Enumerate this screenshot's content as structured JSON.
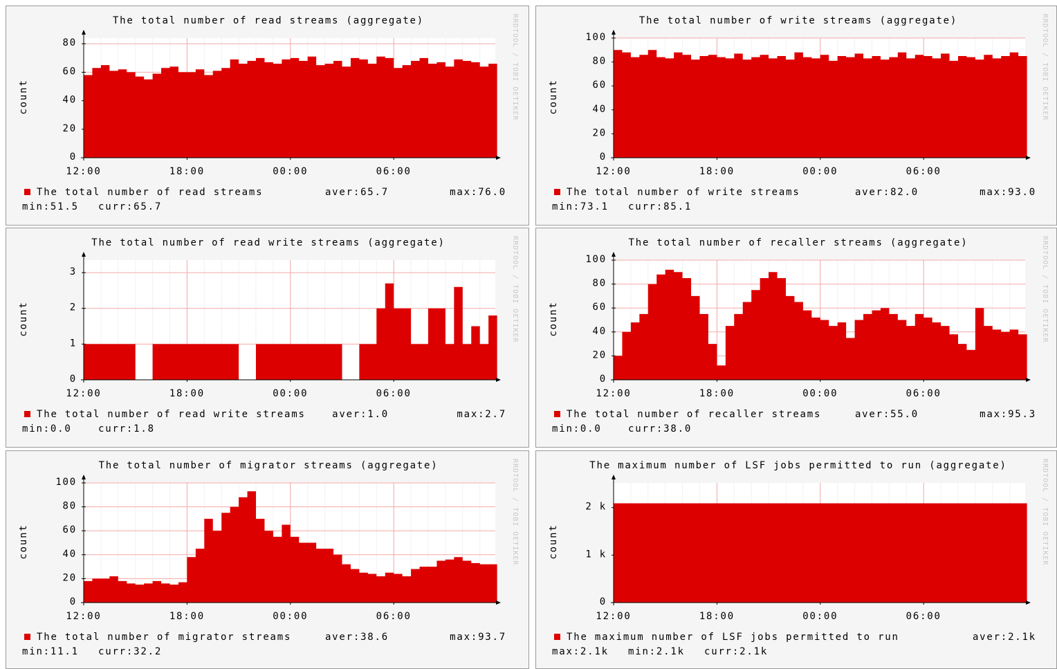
{
  "watermark": "RRDTOOL / TOBI OETIKER",
  "chart_data": [
    {
      "type": "area",
      "title": "The total number of read streams (aggregate)",
      "ylabel": "count",
      "x": [
        0,
        0.5,
        1,
        1.5,
        2,
        2.5,
        3,
        3.5,
        4,
        4.5,
        5,
        5.5,
        6,
        6.5,
        7,
        7.5,
        8,
        8.5,
        9,
        9.5,
        10,
        10.5,
        11,
        11.5,
        12,
        12.5,
        13,
        13.5,
        14,
        14.5,
        15,
        15.5,
        16,
        16.5,
        17,
        17.5,
        18,
        18.5,
        19,
        19.5,
        20,
        20.5,
        21,
        21.5,
        22,
        22.5,
        23,
        23.5
      ],
      "xlim": [
        0,
        24
      ],
      "xticks": [
        {
          "value": 0,
          "label": "12:00"
        },
        {
          "value": 6,
          "label": "18:00"
        },
        {
          "value": 12,
          "label": "00:00"
        },
        {
          "value": 18,
          "label": "06:00"
        }
      ],
      "ylim": [
        0,
        84
      ],
      "yticks": [
        0,
        20,
        40,
        60,
        80
      ],
      "grid": true,
      "series": [
        {
          "name": "The total number of read streams",
          "color": "#dd0000",
          "values": [
            58,
            63,
            65,
            61,
            62,
            60,
            57,
            55,
            59,
            63,
            64,
            60,
            60,
            62,
            58,
            61,
            63,
            69,
            66,
            68,
            70,
            67,
            66,
            69,
            70,
            68,
            71,
            65,
            66,
            68,
            64,
            70,
            69,
            66,
            71,
            70,
            63,
            65,
            68,
            70,
            66,
            67,
            64,
            69,
            68,
            67,
            64,
            66
          ]
        }
      ],
      "stats": [
        [
          "aver:65.7",
          "max:76.0"
        ],
        [
          "min:51.5",
          "curr:65.7"
        ]
      ]
    },
    {
      "type": "area",
      "title": "The total number of write streams (aggregate)",
      "ylabel": "count",
      "x": [
        0,
        0.5,
        1,
        1.5,
        2,
        2.5,
        3,
        3.5,
        4,
        4.5,
        5,
        5.5,
        6,
        6.5,
        7,
        7.5,
        8,
        8.5,
        9,
        9.5,
        10,
        10.5,
        11,
        11.5,
        12,
        12.5,
        13,
        13.5,
        14,
        14.5,
        15,
        15.5,
        16,
        16.5,
        17,
        17.5,
        18,
        18.5,
        19,
        19.5,
        20,
        20.5,
        21,
        21.5,
        22,
        22.5,
        23,
        23.5
      ],
      "xlim": [
        0,
        24
      ],
      "xticks": [
        {
          "value": 0,
          "label": "12:00"
        },
        {
          "value": 6,
          "label": "18:00"
        },
        {
          "value": 12,
          "label": "00:00"
        },
        {
          "value": 18,
          "label": "06:00"
        }
      ],
      "ylim": [
        0,
        100
      ],
      "yticks": [
        0,
        20,
        40,
        60,
        80,
        100
      ],
      "grid": true,
      "series": [
        {
          "name": "The total number of write streams",
          "color": "#dd0000",
          "values": [
            90,
            88,
            84,
            86,
            90,
            84,
            83,
            88,
            86,
            82,
            85,
            86,
            84,
            83,
            87,
            82,
            84,
            86,
            83,
            85,
            82,
            88,
            84,
            83,
            86,
            81,
            85,
            84,
            87,
            83,
            85,
            82,
            84,
            88,
            83,
            86,
            85,
            83,
            87,
            81,
            85,
            84,
            82,
            86,
            83,
            85,
            88,
            85
          ]
        }
      ],
      "stats": [
        [
          "aver:82.0",
          "max:93.0"
        ],
        [
          "min:73.1",
          "curr:85.1"
        ]
      ]
    },
    {
      "type": "area",
      "title": "The total number of read write streams (aggregate)",
      "ylabel": "count",
      "x": [
        0,
        0.5,
        1,
        1.5,
        2,
        2.5,
        3,
        3.5,
        4,
        4.5,
        5,
        5.5,
        6,
        6.5,
        7,
        7.5,
        8,
        8.5,
        9,
        9.5,
        10,
        10.5,
        11,
        11.5,
        12,
        12.5,
        13,
        13.5,
        14,
        14.5,
        15,
        15.5,
        16,
        16.5,
        17,
        17.5,
        18,
        18.5,
        19,
        19.5,
        20,
        20.5,
        21,
        21.5,
        22,
        22.5,
        23,
        23.5
      ],
      "xlim": [
        0,
        24
      ],
      "xticks": [
        {
          "value": 0,
          "label": "12:00"
        },
        {
          "value": 6,
          "label": "18:00"
        },
        {
          "value": 12,
          "label": "00:00"
        },
        {
          "value": 18,
          "label": "06:00"
        }
      ],
      "ylim": [
        0,
        3.35
      ],
      "yticks": [
        0,
        1,
        2,
        3
      ],
      "grid": true,
      "series": [
        {
          "name": "The total number of read write streams",
          "color": "#dd0000",
          "values": [
            1,
            1,
            1,
            1,
            1,
            1,
            0,
            0,
            1,
            1,
            1,
            1,
            1,
            1,
            1,
            1,
            1,
            1,
            0,
            0,
            1,
            1,
            1,
            1,
            1,
            1,
            1,
            1,
            1,
            1,
            0,
            0,
            1,
            1,
            2,
            2.7,
            2,
            2,
            1,
            1,
            2,
            2,
            1,
            2.6,
            1,
            1.5,
            1,
            1.8
          ]
        }
      ],
      "stats": [
        [
          "aver:1.0",
          "max:2.7"
        ],
        [
          "min:0.0",
          "curr:1.8"
        ]
      ]
    },
    {
      "type": "area",
      "title": "The total number of recaller streams (aggregate)",
      "ylabel": "count",
      "x": [
        0,
        0.5,
        1,
        1.5,
        2,
        2.5,
        3,
        3.5,
        4,
        4.5,
        5,
        5.5,
        6,
        6.5,
        7,
        7.5,
        8,
        8.5,
        9,
        9.5,
        10,
        10.5,
        11,
        11.5,
        12,
        12.5,
        13,
        13.5,
        14,
        14.5,
        15,
        15.5,
        16,
        16.5,
        17,
        17.5,
        18,
        18.5,
        19,
        19.5,
        20,
        20.5,
        21,
        21.5,
        22,
        22.5,
        23,
        23.5
      ],
      "xlim": [
        0,
        24
      ],
      "xticks": [
        {
          "value": 0,
          "label": "12:00"
        },
        {
          "value": 6,
          "label": "18:00"
        },
        {
          "value": 12,
          "label": "00:00"
        },
        {
          "value": 18,
          "label": "06:00"
        }
      ],
      "ylim": [
        0,
        100
      ],
      "yticks": [
        0,
        20,
        40,
        60,
        80,
        100
      ],
      "grid": true,
      "series": [
        {
          "name": "The total number of recaller streams",
          "color": "#dd0000",
          "values": [
            20,
            40,
            48,
            55,
            80,
            88,
            92,
            90,
            85,
            70,
            55,
            30,
            12,
            45,
            55,
            65,
            75,
            85,
            90,
            85,
            70,
            65,
            58,
            52,
            50,
            45,
            48,
            35,
            50,
            55,
            58,
            60,
            55,
            50,
            45,
            55,
            52,
            48,
            45,
            38,
            30,
            25,
            60,
            45,
            42,
            40,
            42,
            38
          ]
        }
      ],
      "stats": [
        [
          "aver:55.0",
          "max:95.3"
        ],
        [
          "min:0.0",
          "curr:38.0"
        ]
      ]
    },
    {
      "type": "area",
      "title": "The total number of migrator streams (aggregate)",
      "ylabel": "count",
      "x": [
        0,
        0.5,
        1,
        1.5,
        2,
        2.5,
        3,
        3.5,
        4,
        4.5,
        5,
        5.5,
        6,
        6.5,
        7,
        7.5,
        8,
        8.5,
        9,
        9.5,
        10,
        10.5,
        11,
        11.5,
        12,
        12.5,
        13,
        13.5,
        14,
        14.5,
        15,
        15.5,
        16,
        16.5,
        17,
        17.5,
        18,
        18.5,
        19,
        19.5,
        20,
        20.5,
        21,
        21.5,
        22,
        22.5,
        23,
        23.5
      ],
      "xlim": [
        0,
        24
      ],
      "xticks": [
        {
          "value": 0,
          "label": "12:00"
        },
        {
          "value": 6,
          "label": "18:00"
        },
        {
          "value": 12,
          "label": "00:00"
        },
        {
          "value": 18,
          "label": "06:00"
        }
      ],
      "ylim": [
        0,
        100
      ],
      "yticks": [
        0,
        20,
        40,
        60,
        80,
        100
      ],
      "grid": true,
      "series": [
        {
          "name": "The total number of migrator streams",
          "color": "#dd0000",
          "values": [
            18,
            20,
            20,
            22,
            18,
            16,
            15,
            16,
            18,
            16,
            15,
            17,
            38,
            45,
            70,
            60,
            75,
            80,
            88,
            93,
            70,
            60,
            55,
            65,
            55,
            50,
            50,
            45,
            45,
            40,
            32,
            28,
            25,
            24,
            22,
            25,
            24,
            22,
            28,
            30,
            30,
            35,
            36,
            38,
            35,
            33,
            32,
            32
          ]
        }
      ],
      "stats": [
        [
          "aver:38.6",
          "max:93.7"
        ],
        [
          "min:11.1",
          "curr:32.2"
        ]
      ]
    },
    {
      "type": "area",
      "title": "The maximum number of LSF jobs permitted to run (aggregate)",
      "ylabel": "count",
      "x": [
        0,
        0.5,
        1,
        1.5,
        2,
        2.5,
        3,
        3.5,
        4,
        4.5,
        5,
        5.5,
        6,
        6.5,
        7,
        7.5,
        8,
        8.5,
        9,
        9.5,
        10,
        10.5,
        11,
        11.5,
        12,
        12.5,
        13,
        13.5,
        14,
        14.5,
        15,
        15.5,
        16,
        16.5,
        17,
        17.5,
        18,
        18.5,
        19,
        19.5,
        20,
        20.5,
        21,
        21.5,
        22,
        22.5,
        23,
        23.5
      ],
      "xlim": [
        0,
        24
      ],
      "xticks": [
        {
          "value": 0,
          "label": "12:00"
        },
        {
          "value": 6,
          "label": "18:00"
        },
        {
          "value": 12,
          "label": "00:00"
        },
        {
          "value": 18,
          "label": "06:00"
        }
      ],
      "ylim": [
        0,
        2520
      ],
      "yticks": [
        0,
        {
          "value": 1000,
          "label": "1 k"
        },
        {
          "value": 2000,
          "label": "2 k"
        }
      ],
      "grid": true,
      "series": [
        {
          "name": "The maximum number of LSF jobs permitted to run",
          "color": "#dd0000",
          "values": [
            2090,
            2090,
            2090,
            2090,
            2090,
            2090,
            2090,
            2090,
            2090,
            2090,
            2090,
            2090,
            2090,
            2090,
            2090,
            2090,
            2090,
            2090,
            2090,
            2090,
            2090,
            2090,
            2090,
            2090,
            2090,
            2090,
            2090,
            2090,
            2090,
            2090,
            2090,
            2090,
            2090,
            2090,
            2090,
            2090,
            2090,
            2090,
            2090,
            2090,
            2090,
            2090,
            2090,
            2090,
            2090,
            2090,
            2090,
            2090
          ]
        }
      ],
      "stats": [
        [
          "aver:2.1k"
        ],
        [
          "max:2.1k",
          "min:2.1k",
          "curr:2.1k"
        ]
      ]
    }
  ]
}
